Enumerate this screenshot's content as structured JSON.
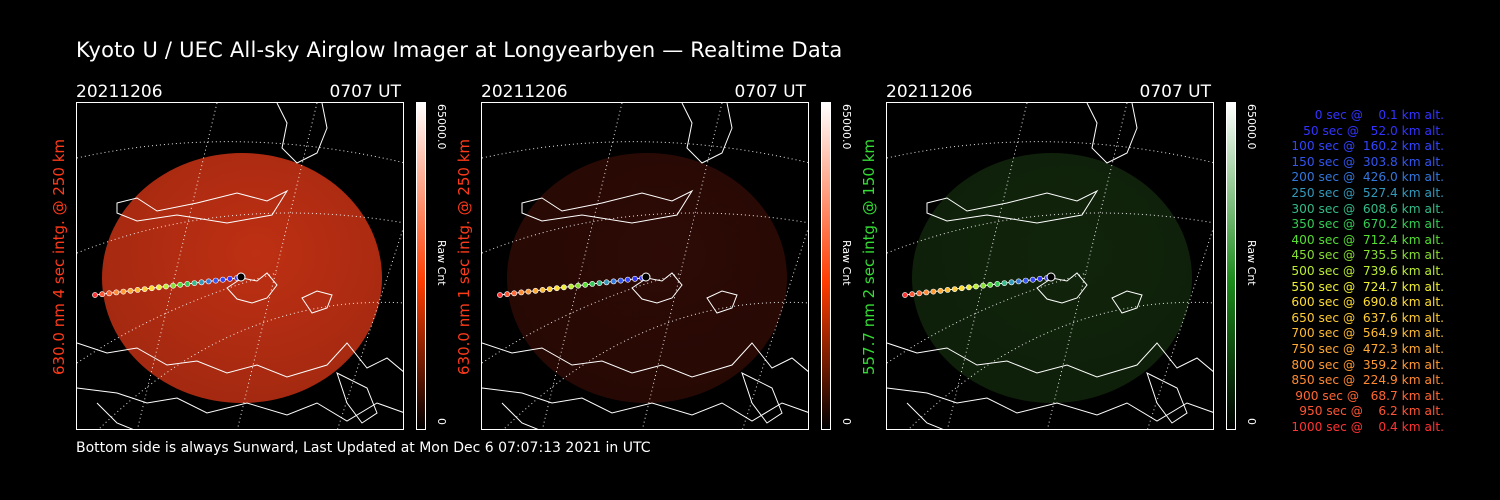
{
  "title": "Kyoto U / UEC All-sky Airglow Imager at Longyearbyen — Realtime Data",
  "footer": "Bottom side is always Sunward, Last Updated at Mon Dec  6 07:07:13 2021 in UTC",
  "panels": [
    {
      "date": "20211206",
      "time": "0707 UT",
      "side_label": "630.0 nm 4 sec intg. @ 250 km",
      "label_color": "#ff3a1a",
      "colorbar_max": "65000.0",
      "colorbar_unit": "Raw Cnt",
      "colorbar_min": "0",
      "glow_color": "#c83214",
      "colorbar_top": "#ffffff",
      "colorbar_bottom": "#ff3c00",
      "intensity": 0.95
    },
    {
      "date": "20211206",
      "time": "0707 UT",
      "side_label": "630.0 nm 1 sec intg. @ 250 km",
      "label_color": "#ff3a1a",
      "colorbar_max": "65000.0",
      "colorbar_unit": "Raw Cnt",
      "colorbar_min": "0",
      "glow_color": "#5a140a",
      "colorbar_top": "#ffffff",
      "colorbar_bottom": "#ff3c00",
      "intensity": 0.5
    },
    {
      "date": "20211206",
      "time": "0707 UT",
      "side_label": "557.7 nm 2 sec intg. @ 150 km",
      "label_color": "#33dd33",
      "colorbar_max": "65000.0",
      "colorbar_unit": "Raw Cnt",
      "colorbar_min": "0",
      "glow_color": "#1e4214",
      "colorbar_top": "#ffffff",
      "colorbar_bottom": "#1a8a1a",
      "intensity": 0.55
    }
  ],
  "legend": [
    {
      "text": "0 sec @    0.1 km alt.",
      "color": "#3333ff"
    },
    {
      "text": "50 sec @   52.0 km alt.",
      "color": "#3333ff"
    },
    {
      "text": "100 sec @  160.2 km alt.",
      "color": "#3344ff"
    },
    {
      "text": "150 sec @  303.8 km alt.",
      "color": "#3355ee"
    },
    {
      "text": "200 sec @  426.0 km alt.",
      "color": "#3377dd"
    },
    {
      "text": "250 sec @  527.4 km alt.",
      "color": "#3399bb"
    },
    {
      "text": "300 sec @  608.6 km alt.",
      "color": "#33bb88"
    },
    {
      "text": "350 sec @  670.2 km alt.",
      "color": "#33cc55"
    },
    {
      "text": "400 sec @  712.4 km alt.",
      "color": "#55dd33"
    },
    {
      "text": "450 sec @  735.5 km alt.",
      "color": "#88dd33"
    },
    {
      "text": "500 sec @  739.6 km alt.",
      "color": "#bbee33"
    },
    {
      "text": "550 sec @  724.7 km alt.",
      "color": "#eeee33"
    },
    {
      "text": "600 sec @  690.8 km alt.",
      "color": "#ffdd33"
    },
    {
      "text": "650 sec @  637.6 km alt.",
      "color": "#ffcc33"
    },
    {
      "text": "700 sec @  564.9 km alt.",
      "color": "#ffbb33"
    },
    {
      "text": "750 sec @  472.3 km alt.",
      "color": "#ffaa33"
    },
    {
      "text": "800 sec @  359.2 km alt.",
      "color": "#ff9933"
    },
    {
      "text": "850 sec @  224.9 km alt.",
      "color": "#ff8833"
    },
    {
      "text": "900 sec @   68.7 km alt.",
      "color": "#ff6633"
    },
    {
      "text": "950 sec @    6.2 km alt.",
      "color": "#ff5533"
    },
    {
      "text": "1000 sec @    0.4 km alt.",
      "color": "#ff3333"
    }
  ]
}
